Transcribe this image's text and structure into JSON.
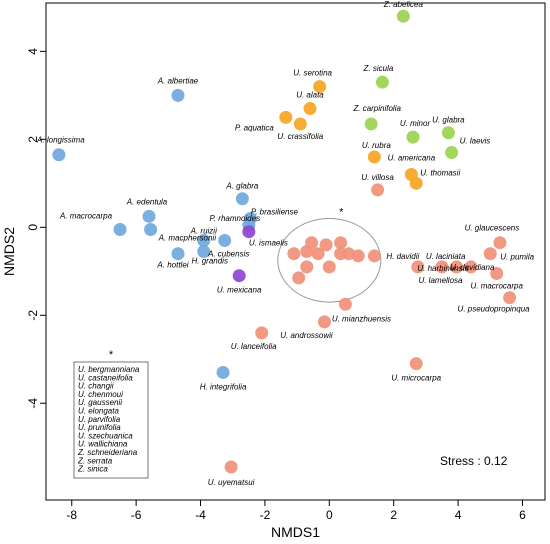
{
  "chart_data": {
    "type": "scatter",
    "xlabel": "NMDS1",
    "ylabel": "NMDS2",
    "xlim": [
      -8.8,
      6.7
    ],
    "ylim": [
      -6.2,
      5.1
    ],
    "xticks": [
      -8,
      -6,
      -4,
      -2,
      0,
      2,
      4,
      6
    ],
    "yticks": [
      -4,
      -2,
      0,
      2,
      4
    ],
    "stress_label": "Stress :  0.12",
    "colors": {
      "blue": "#6fa8dc",
      "purple": "#8e44d6",
      "orange": "#f6a623",
      "green": "#9bd34f",
      "salmon": "#f1907a"
    },
    "points": [
      {
        "label": "A. longissima",
        "x": -8.4,
        "y": 1.65,
        "color": "blue"
      },
      {
        "label": "A. albertiae",
        "x": -4.7,
        "y": 3.0,
        "color": "blue"
      },
      {
        "label": "A. macrocarpa",
        "x": -6.5,
        "y": -0.05,
        "color": "blue"
      },
      {
        "label": "A. edentula",
        "x": -5.6,
        "y": 0.25,
        "color": "blue"
      },
      {
        "label": "A. macphersonii",
        "x": -5.55,
        "y": -0.05,
        "color": "blue"
      },
      {
        "label": "A. hottlei",
        "x": -4.7,
        "y": -0.6,
        "color": "blue"
      },
      {
        "label": "A. ruizii",
        "x": -3.9,
        "y": -0.3,
        "color": "blue"
      },
      {
        "label": "H. grandis",
        "x": -3.9,
        "y": -0.55,
        "color": "blue"
      },
      {
        "label": "A. cubensis",
        "x": -3.25,
        "y": -0.3,
        "color": "blue"
      },
      {
        "label": "A. glabra",
        "x": -2.7,
        "y": 0.65,
        "color": "blue"
      },
      {
        "label": "P. rhamnoides",
        "x": -2.5,
        "y": 0.05,
        "color": "blue"
      },
      {
        "label": "P. brasiliense",
        "x": -2.45,
        "y": 0.2,
        "color": "blue"
      },
      {
        "label": "H. integrifolia",
        "x": -3.3,
        "y": -3.3,
        "color": "blue"
      },
      {
        "label": "U. ismaelis",
        "x": -2.5,
        "y": -0.1,
        "color": "purple"
      },
      {
        "label": "U. mexicana",
        "x": -2.8,
        "y": -1.1,
        "color": "purple"
      },
      {
        "label": "U. serotina",
        "x": -0.3,
        "y": 3.2,
        "color": "orange"
      },
      {
        "label": "U. alata",
        "x": -0.6,
        "y": 2.7,
        "color": "orange"
      },
      {
        "label": "P. aquatica",
        "x": -1.35,
        "y": 2.5,
        "color": "orange"
      },
      {
        "label": "U. crassifolia",
        "x": -0.9,
        "y": 2.35,
        "color": "orange"
      },
      {
        "label": "U. rubra",
        "x": 1.4,
        "y": 1.6,
        "color": "orange"
      },
      {
        "label": "U. americana",
        "x": 2.55,
        "y": 1.2,
        "color": "orange"
      },
      {
        "label": "U. thomasii",
        "x": 2.7,
        "y": 1.0,
        "color": "orange"
      },
      {
        "label": "Z. abelicea",
        "x": 2.3,
        "y": 4.8,
        "color": "green"
      },
      {
        "label": "Z. sicula",
        "x": 1.65,
        "y": 3.3,
        "color": "green"
      },
      {
        "label": "Z. carpinifolia",
        "x": 1.3,
        "y": 2.35,
        "color": "green"
      },
      {
        "label": "U. minor",
        "x": 2.6,
        "y": 2.05,
        "color": "green"
      },
      {
        "label": "U. glabra",
        "x": 3.7,
        "y": 2.15,
        "color": "green"
      },
      {
        "label": "U. laevis",
        "x": 3.8,
        "y": 1.7,
        "color": "green"
      },
      {
        "label": "U. villosa",
        "x": 1.5,
        "y": 0.85,
        "color": "salmon"
      },
      {
        "label": "",
        "x": -1.1,
        "y": -0.6,
        "color": "salmon"
      },
      {
        "label": "",
        "x": -0.7,
        "y": -0.55,
        "color": "salmon"
      },
      {
        "label": "",
        "x": -0.55,
        "y": -0.35,
        "color": "salmon"
      },
      {
        "label": "",
        "x": -0.35,
        "y": -0.6,
        "color": "salmon"
      },
      {
        "label": "",
        "x": -0.1,
        "y": -0.4,
        "color": "salmon"
      },
      {
        "label": "",
        "x": 0.35,
        "y": -0.35,
        "color": "salmon"
      },
      {
        "label": "",
        "x": 0.35,
        "y": -0.6,
        "color": "salmon"
      },
      {
        "label": "",
        "x": 0.6,
        "y": -0.6,
        "color": "salmon"
      },
      {
        "label": "",
        "x": -0.7,
        "y": -0.9,
        "color": "salmon"
      },
      {
        "label": "",
        "x": 0.0,
        "y": -0.9,
        "color": "salmon"
      },
      {
        "label": "",
        "x": -0.95,
        "y": -1.15,
        "color": "salmon"
      },
      {
        "label": "",
        "x": 0.9,
        "y": -0.65,
        "color": "salmon"
      },
      {
        "label": "H. davidii",
        "x": 1.4,
        "y": -0.65,
        "color": "salmon"
      },
      {
        "label": "U. laciniata",
        "x": 2.75,
        "y": -0.9,
        "color": "salmon"
      },
      {
        "label": "U. davidiana",
        "x": 3.5,
        "y": -0.9,
        "color": "salmon"
      },
      {
        "label": "U. lamellosa",
        "x": 3.95,
        "y": -0.9,
        "color": "salmon"
      },
      {
        "label": "U. glaucescens",
        "x": 5.3,
        "y": -0.35,
        "color": "salmon"
      },
      {
        "label": "U. pumila",
        "x": 5.0,
        "y": -0.6,
        "color": "salmon"
      },
      {
        "label": "U. macrocarpa",
        "x": 5.2,
        "y": -1.05,
        "color": "salmon"
      },
      {
        "label": "U. harbinensis",
        "x": 4.4,
        "y": -0.9,
        "color": "salmon"
      },
      {
        "label": "U. pseudopropinqua",
        "x": 5.6,
        "y": -1.6,
        "color": "salmon"
      },
      {
        "label": "U. mianzhuensis",
        "x": 0.5,
        "y": -1.75,
        "color": "salmon"
      },
      {
        "label": "U. androssowii",
        "x": -0.15,
        "y": -2.15,
        "color": "salmon"
      },
      {
        "label": "U. lanceifolia",
        "x": -2.1,
        "y": -2.4,
        "color": "salmon"
      },
      {
        "label": "U. microcarpa",
        "x": 2.7,
        "y": -3.1,
        "color": "salmon"
      },
      {
        "label": "U. uyematsui",
        "x": -3.05,
        "y": -5.45,
        "color": "salmon"
      }
    ],
    "ellipse_cluster": {
      "cx": 0.0,
      "cy": -0.75,
      "rx": 1.6,
      "ry": 0.95,
      "star": "*"
    },
    "legend": {
      "star": "*",
      "entries": [
        "U. bergmanniana",
        "U. castaneifolia",
        "U. changii",
        "U. chenmoui",
        "U. gaussenii",
        "U. elongata",
        "U. parvifolia",
        "U. prunifolia",
        "U. szechuanica",
        "U. wallichiana",
        "Z. schneideriana",
        "Z. serrata",
        "Z. sinica"
      ]
    }
  }
}
